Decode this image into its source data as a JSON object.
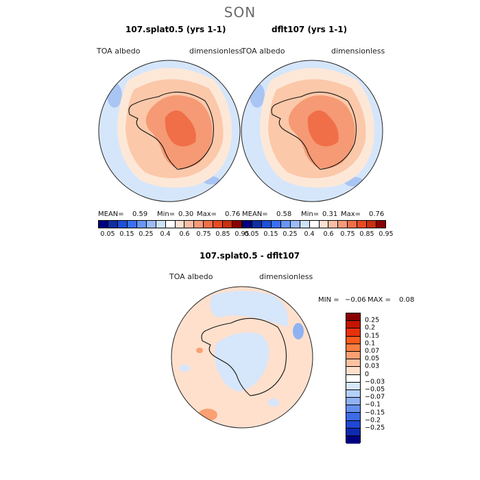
{
  "figure": {
    "season_title": "SON"
  },
  "panels": [
    {
      "title": "107.splat0.5 (yrs 1-1)",
      "variable_label": "TOA albedo",
      "units_label": "dimensionless",
      "stats": {
        "mean_label": "MEAN=",
        "mean": "0.59",
        "min_label": "Min=",
        "min": "0.30",
        "max_label": "Max=",
        "max": "0.76"
      }
    },
    {
      "title": "dflt107 (yrs 1-1)",
      "variable_label": "TOA albedo",
      "units_label": "dimensionless",
      "stats": {
        "mean_label": "MEAN=",
        "mean": "0.58",
        "min_label": "Min=",
        "min": "0.31",
        "max_label": "Max=",
        "max": "0.76"
      }
    }
  ],
  "diff_panel": {
    "title": "107.splat0.5 - dflt107",
    "variable_label": "TOA albedo",
    "units_label": "dimensionless",
    "stats": {
      "min_label": "MIN =",
      "min": "−0.06",
      "max_label": "MAX =",
      "max": "0.08"
    }
  },
  "colorbar_main": {
    "colors": [
      "#000080",
      "#102fa0",
      "#1e4fd6",
      "#3a6ff0",
      "#6a95f5",
      "#9cbcf8",
      "#cfe2fb",
      "#ffffff",
      "#fde0d0",
      "#f9bea4",
      "#f59a7a",
      "#f06f4a",
      "#e84a25",
      "#c8300f",
      "#8a0000"
    ],
    "tick_labels": [
      "0.05",
      "0.15",
      "0.25",
      "0.4",
      "0.6",
      "0.75",
      "0.85",
      "0.95"
    ]
  },
  "colorbar_diff": {
    "colors": [
      "#8a0000",
      "#c41400",
      "#e8320c",
      "#fb5a1c",
      "#fd7e42",
      "#fba073",
      "#fdc2a2",
      "#fee0cd",
      "#ffffff",
      "#d6e6fb",
      "#b4d0f8",
      "#8fb2f4",
      "#6690ef",
      "#3e6ce6",
      "#1f47d4",
      "#0e2bb0",
      "#000080"
    ],
    "tick_labels": [
      "0.25",
      "0.2",
      "0.15",
      "0.1",
      "0.07",
      "0.05",
      "0.03",
      "0",
      "−0.03",
      "−0.05",
      "−0.07",
      "−0.1",
      "−0.15",
      "−0.2",
      "−0.25"
    ]
  }
}
